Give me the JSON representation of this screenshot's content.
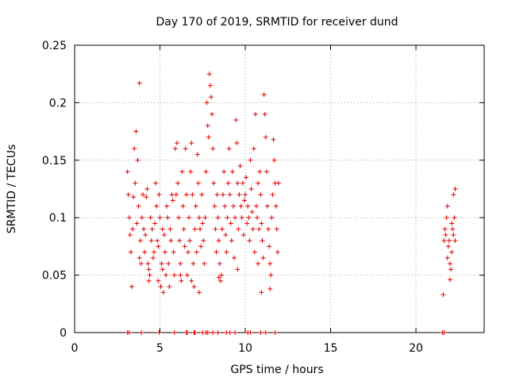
{
  "chart_data": {
    "type": "scatter",
    "title": "Day 170 of 2019, SRMTID for receiver dund",
    "xlabel": "GPS time / hours",
    "ylabel": "SRMTID / TECUs",
    "xlim": [
      0,
      24
    ],
    "ylim": [
      0,
      0.25
    ],
    "xticks": [
      0,
      5,
      10,
      15,
      20
    ],
    "xtick_labels": [
      "0",
      "5",
      "10",
      "15",
      "20"
    ],
    "yticks": [
      0,
      0.05,
      0.1,
      0.15,
      0.2,
      0.25
    ],
    "ytick_labels": [
      "0",
      "0.05",
      "0.1",
      "0.15",
      "0.2",
      "0.25"
    ],
    "grid": true,
    "marker": "plus",
    "color": "#e00000",
    "series": [
      {
        "name": "SRMTID",
        "points": [
          [
            3.1,
            0.14
          ],
          [
            3.15,
            0.12
          ],
          [
            3.2,
            0.1
          ],
          [
            3.25,
            0.085
          ],
          [
            3.3,
            0.07
          ],
          [
            3.35,
            0.04
          ],
          [
            3.4,
            0.09
          ],
          [
            3.45,
            0.118
          ],
          [
            3.5,
            0.16
          ],
          [
            3.55,
            0.13
          ],
          [
            3.6,
            0.175
          ],
          [
            3.65,
            0.095
          ],
          [
            3.7,
            0.15
          ],
          [
            3.75,
            0.11
          ],
          [
            3.8,
            0.217
          ],
          [
            3.85,
            0.08
          ],
          [
            3.9,
            0.06
          ],
          [
            3.95,
            0.1
          ],
          [
            4.0,
            0.12
          ],
          [
            4.05,
            0.09
          ],
          [
            4.1,
            0.07
          ],
          [
            4.15,
            0.085
          ],
          [
            4.2,
            0.118
          ],
          [
            4.25,
            0.125
          ],
          [
            4.3,
            0.06
          ],
          [
            4.35,
            0.055
          ],
          [
            4.4,
            0.05
          ],
          [
            4.45,
            0.1
          ],
          [
            4.5,
            0.08
          ],
          [
            4.55,
            0.09
          ],
          [
            4.6,
            0.065
          ],
          [
            4.65,
            0.07
          ],
          [
            4.7,
            0.095
          ],
          [
            4.75,
            0.13
          ],
          [
            4.8,
            0.11
          ],
          [
            4.85,
            0.08
          ],
          [
            4.9,
            0.075
          ],
          [
            4.95,
            0.12
          ],
          [
            5.0,
            0.1
          ],
          [
            5.05,
            0.04
          ],
          [
            5.1,
            0.06
          ],
          [
            5.15,
            0.09
          ],
          [
            5.2,
            0.035
          ],
          [
            5.25,
            0.085
          ],
          [
            5.3,
            0.07
          ],
          [
            5.35,
            0.05
          ],
          [
            5.4,
            0.11
          ],
          [
            5.45,
            0.1
          ],
          [
            5.5,
            0.06
          ],
          [
            5.55,
            0.04
          ],
          [
            5.6,
            0.09
          ],
          [
            5.65,
            0.08
          ],
          [
            5.7,
            0.12
          ],
          [
            5.75,
            0.115
          ],
          [
            5.8,
            0.07
          ],
          [
            5.85,
            0.05
          ],
          [
            5.9,
            0.16
          ],
          [
            5.95,
            0.12
          ],
          [
            6.0,
            0.165
          ],
          [
            6.05,
            0.13
          ],
          [
            6.1,
            0.1
          ],
          [
            6.15,
            0.08
          ],
          [
            6.2,
            0.06
          ],
          [
            6.25,
            0.045
          ],
          [
            6.3,
            0.14
          ],
          [
            6.35,
            0.11
          ],
          [
            6.4,
            0.09
          ],
          [
            6.45,
            0.075
          ],
          [
            6.5,
            0.16
          ],
          [
            6.55,
            0.12
          ],
          [
            6.6,
            0.05
          ],
          [
            6.65,
            0.07
          ],
          [
            6.7,
            0.1
          ],
          [
            6.75,
            0.08
          ],
          [
            6.8,
            0.14
          ],
          [
            6.85,
            0.165
          ],
          [
            6.9,
            0.12
          ],
          [
            6.95,
            0.06
          ],
          [
            7.0,
            0.04
          ],
          [
            7.05,
            0.09
          ],
          [
            7.1,
            0.11
          ],
          [
            7.15,
            0.07
          ],
          [
            7.2,
            0.155
          ],
          [
            7.25,
            0.13
          ],
          [
            7.3,
            0.1
          ],
          [
            7.35,
            0.09
          ],
          [
            7.4,
            0.075
          ],
          [
            7.45,
            0.12
          ],
          [
            7.5,
            0.095
          ],
          [
            7.55,
            0.08
          ],
          [
            7.6,
            0.06
          ],
          [
            7.65,
            0.1
          ],
          [
            7.7,
            0.14
          ],
          [
            7.75,
            0.2
          ],
          [
            7.8,
            0.18
          ],
          [
            7.85,
            0.17
          ],
          [
            7.9,
            0.225
          ],
          [
            7.95,
            0.215
          ],
          [
            8.0,
            0.205
          ],
          [
            8.05,
            0.19
          ],
          [
            8.1,
            0.16
          ],
          [
            8.15,
            0.13
          ],
          [
            8.2,
            0.11
          ],
          [
            8.25,
            0.09
          ],
          [
            8.3,
            0.07
          ],
          [
            8.35,
            0.12
          ],
          [
            8.4,
            0.1
          ],
          [
            8.45,
            0.08
          ],
          [
            8.5,
            0.06
          ],
          [
            8.55,
            0.045
          ],
          [
            8.6,
            0.05
          ],
          [
            8.65,
            0.09
          ],
          [
            8.7,
            0.12
          ],
          [
            8.75,
            0.14
          ],
          [
            8.8,
            0.11
          ],
          [
            8.85,
            0.085
          ],
          [
            8.9,
            0.07
          ],
          [
            8.95,
            0.1
          ],
          [
            9.0,
            0.13
          ],
          [
            9.05,
            0.16
          ],
          [
            9.1,
            0.12
          ],
          [
            9.15,
            0.095
          ],
          [
            9.2,
            0.08
          ],
          [
            9.25,
            0.14
          ],
          [
            9.3,
            0.11
          ],
          [
            9.35,
            0.065
          ],
          [
            9.4,
            0.1
          ],
          [
            9.45,
            0.185
          ],
          [
            9.5,
            0.165
          ],
          [
            9.55,
            0.13
          ],
          [
            9.6,
            0.09
          ],
          [
            9.65,
            0.12
          ],
          [
            9.7,
            0.145
          ],
          [
            9.75,
            0.11
          ],
          [
            9.8,
            0.1
          ],
          [
            9.85,
            0.13
          ],
          [
            9.9,
            0.085
          ],
          [
            9.95,
            0.115
          ],
          [
            10.0,
            0.12
          ],
          [
            10.05,
            0.135
          ],
          [
            10.1,
            0.095
          ],
          [
            10.15,
            0.11
          ],
          [
            10.2,
            0.1
          ],
          [
            10.25,
            0.08
          ],
          [
            10.3,
            0.15
          ],
          [
            10.35,
            0.125
          ],
          [
            10.4,
            0.105
          ],
          [
            10.45,
            0.09
          ],
          [
            10.5,
            0.16
          ],
          [
            10.55,
            0.07
          ],
          [
            10.6,
            0.19
          ],
          [
            10.65,
            0.11
          ],
          [
            10.7,
            0.1
          ],
          [
            10.75,
            0.13
          ],
          [
            10.8,
            0.09
          ],
          [
            10.85,
            0.14
          ],
          [
            10.9,
            0.12
          ],
          [
            10.95,
            0.095
          ],
          [
            11.0,
            0.08
          ],
          [
            11.05,
            0.065
          ],
          [
            11.1,
            0.207
          ],
          [
            11.15,
            0.19
          ],
          [
            11.2,
            0.17
          ],
          [
            11.25,
            0.14
          ],
          [
            11.3,
            0.11
          ],
          [
            11.35,
            0.09
          ],
          [
            11.4,
            0.075
          ],
          [
            11.45,
            0.06
          ],
          [
            11.5,
            0.05
          ],
          [
            11.55,
            0.1
          ],
          [
            11.6,
            0.12
          ],
          [
            11.65,
            0.168
          ],
          [
            11.7,
            0.15
          ],
          [
            11.75,
            0.13
          ],
          [
            11.8,
            0.11
          ],
          [
            11.85,
            0.09
          ],
          [
            11.9,
            0.07
          ],
          [
            11.95,
            0.13
          ],
          [
            10.95,
            0.035
          ],
          [
            11.45,
            0.038
          ],
          [
            4.35,
            0.045
          ],
          [
            5.15,
            0.055
          ],
          [
            6.85,
            0.045
          ],
          [
            8.45,
            0.048
          ],
          [
            9.55,
            0.055
          ],
          [
            10.75,
            0.06
          ],
          [
            7.3,
            0.035
          ],
          [
            6.2,
            0.05
          ],
          [
            3.8,
            0.065
          ],
          [
            4.9,
            0.045
          ],
          [
            21.6,
            0.033
          ],
          [
            21.7,
            0.09
          ],
          [
            21.75,
            0.085
          ],
          [
            21.8,
            0.1
          ],
          [
            21.85,
            0.11
          ],
          [
            21.9,
            0.075
          ],
          [
            21.95,
            0.08
          ],
          [
            22.0,
            0.06
          ],
          [
            22.05,
            0.055
          ],
          [
            22.1,
            0.07
          ],
          [
            22.15,
            0.09
          ],
          [
            22.2,
            0.12
          ],
          [
            22.25,
            0.1
          ],
          [
            22.3,
            0.08
          ],
          [
            21.85,
            0.065
          ],
          [
            22.0,
            0.046
          ],
          [
            22.2,
            0.085
          ],
          [
            21.65,
            0.08
          ],
          [
            22.1,
            0.095
          ],
          [
            22.3,
            0.125
          ]
        ],
        "zero_points_x": [
          3.1,
          3.2,
          3.9,
          4.95,
          5.85,
          6.55,
          6.6,
          7.0,
          7.05,
          7.5,
          7.7,
          7.8,
          8.1,
          8.4,
          8.9,
          9.1,
          9.4,
          10.15,
          10.3,
          10.9,
          11.2,
          11.75,
          21.55,
          21.65
        ]
      }
    ]
  }
}
